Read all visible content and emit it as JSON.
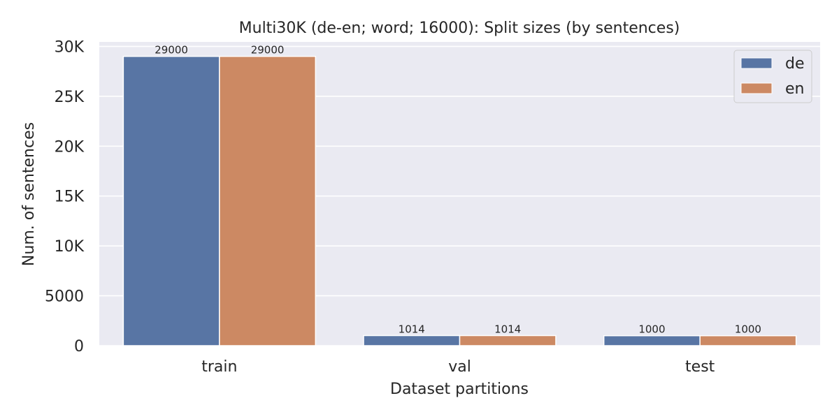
{
  "chart_data": {
    "type": "bar",
    "title": "Multi30K (de-en; word; 16000): Split sizes (by sentences)",
    "xlabel": "Dataset partitions",
    "ylabel": "Num. of sentences",
    "categories": [
      "train",
      "val",
      "test"
    ],
    "series": [
      {
        "name": "de",
        "values": [
          29000,
          1014,
          1000
        ],
        "color": "#5875a4"
      },
      {
        "name": "en",
        "values": [
          29000,
          1014,
          1000
        ],
        "color": "#cc8963"
      }
    ],
    "yticks": [
      0,
      5000,
      10000,
      15000,
      20000,
      25000,
      30000
    ],
    "ytick_labels": [
      "0",
      "5000",
      "10K",
      "15K",
      "20K",
      "25K",
      "30K"
    ],
    "ylim": [
      0,
      30450
    ],
    "grid": true,
    "legend_position": "top-right",
    "background": "#eaeaf2"
  }
}
